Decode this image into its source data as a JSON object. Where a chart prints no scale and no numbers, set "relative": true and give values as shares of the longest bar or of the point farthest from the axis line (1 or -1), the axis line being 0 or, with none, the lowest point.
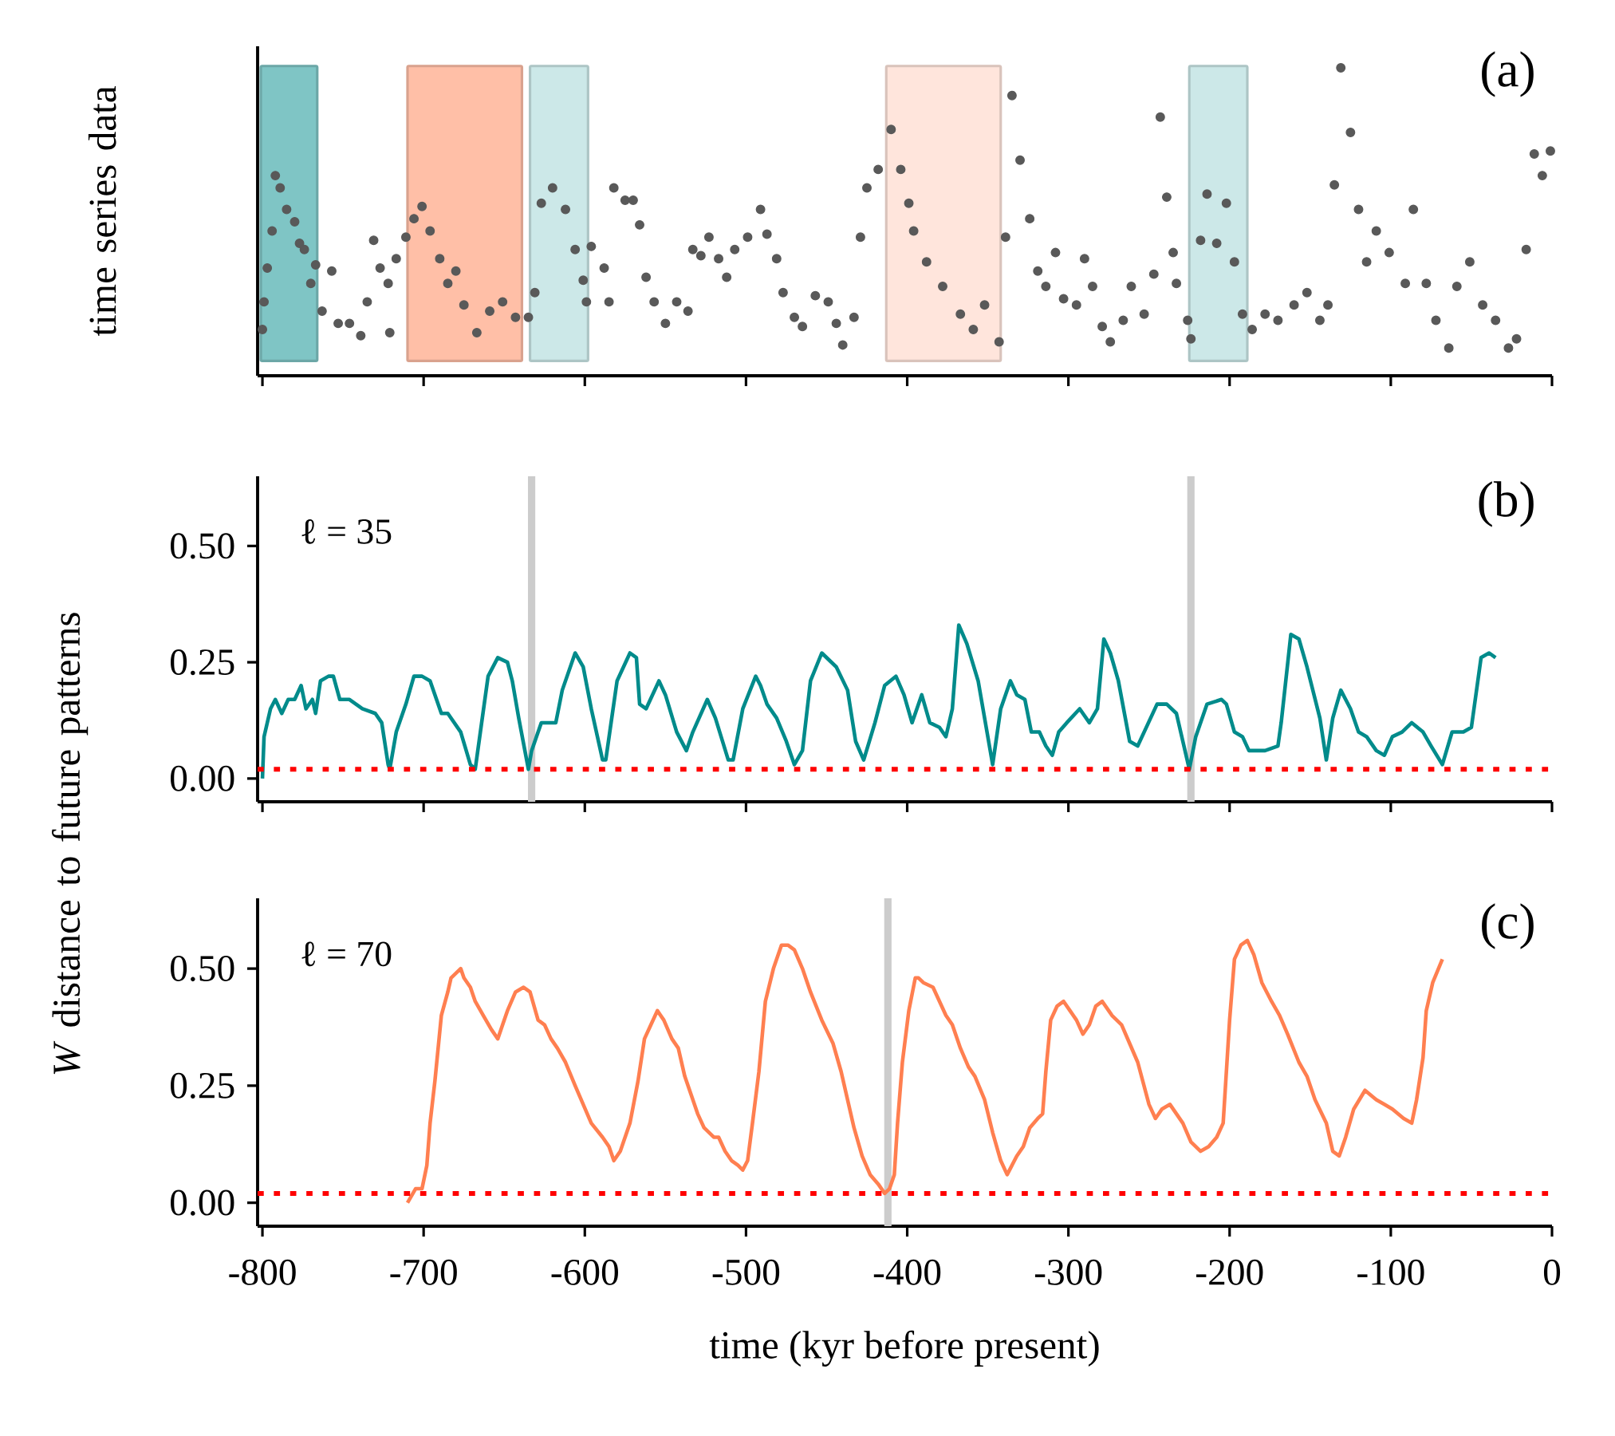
{
  "chart_data": [
    {
      "type": "scatter",
      "ylabel": "time series data",
      "relative": true,
      "color": "#595959",
      "xlim": [
        -803,
        0
      ],
      "xticks": [
        -800,
        -700,
        -600,
        -500,
        -400,
        -300,
        -200,
        -100,
        0
      ],
      "tick_labels": false,
      "x": [
        -800,
        -799,
        -797,
        -794,
        -792,
        -789,
        -785,
        -780,
        -777,
        -774,
        -770,
        -767,
        -763,
        -757,
        -753,
        -746,
        -739,
        -735,
        -731,
        -727,
        -722,
        -721,
        -717,
        -711,
        -706,
        -701,
        -696,
        -690,
        -685,
        -680,
        -675,
        -667,
        -659,
        -651,
        -643,
        -635,
        -631,
        -627,
        -620,
        -612,
        -606,
        -601,
        -599,
        -596,
        -588,
        -585,
        -582,
        -575,
        -570,
        -566,
        -562,
        -557,
        -550,
        -543,
        -536,
        -533,
        -528,
        -523,
        -517,
        -512,
        -507,
        -499,
        -491,
        -487,
        -481,
        -477,
        -470,
        -465,
        -457,
        -449,
        -444,
        -440,
        -433,
        -429,
        -425,
        -418,
        -410,
        -404,
        -399,
        -396,
        -388,
        -378,
        -367,
        -359,
        -352,
        -343,
        -339,
        -335,
        -330,
        -324,
        -319,
        -314,
        -308,
        -303,
        -295,
        -290,
        -285,
        -279,
        -274,
        -266,
        -261,
        -253,
        -247,
        -243,
        -239,
        -235,
        -233,
        -226,
        -224,
        -218,
        -214,
        -208,
        -202,
        -197,
        -192,
        -186,
        -178,
        -170,
        -160,
        -152,
        -144,
        -139,
        -135,
        -131,
        -125,
        -120,
        -115,
        -109,
        -101,
        -91,
        -86,
        -78,
        -72,
        -64,
        -59,
        -51,
        -43,
        -35,
        -27,
        -22,
        -16,
        -11,
        -6,
        -1
      ],
      "values": [
        0.15,
        0.24,
        0.35,
        0.47,
        0.65,
        0.61,
        0.54,
        0.5,
        0.43,
        0.41,
        0.3,
        0.36,
        0.21,
        0.34,
        0.17,
        0.17,
        0.13,
        0.24,
        0.44,
        0.35,
        0.3,
        0.14,
        0.38,
        0.45,
        0.51,
        0.55,
        0.47,
        0.38,
        0.3,
        0.34,
        0.23,
        0.14,
        0.21,
        0.24,
        0.19,
        0.19,
        0.27,
        0.56,
        0.61,
        0.54,
        0.41,
        0.31,
        0.24,
        0.42,
        0.35,
        0.24,
        0.61,
        0.57,
        0.57,
        0.49,
        0.32,
        0.24,
        0.17,
        0.24,
        0.21,
        0.41,
        0.39,
        0.45,
        0.38,
        0.32,
        0.41,
        0.45,
        0.54,
        0.46,
        0.38,
        0.27,
        0.19,
        0.16,
        0.26,
        0.24,
        0.17,
        0.1,
        0.19,
        0.45,
        0.61,
        0.67,
        0.8,
        0.67,
        0.56,
        0.47,
        0.37,
        0.29,
        0.2,
        0.15,
        0.23,
        0.11,
        0.45,
        0.91,
        0.7,
        0.51,
        0.34,
        0.29,
        0.4,
        0.25,
        0.23,
        0.38,
        0.29,
        0.16,
        0.11,
        0.18,
        0.29,
        0.2,
        0.33,
        0.84,
        0.58,
        0.4,
        0.3,
        0.18,
        0.12,
        0.44,
        0.59,
        0.43,
        0.56,
        0.37,
        0.2,
        0.15,
        0.2,
        0.18,
        0.23,
        0.27,
        0.18,
        0.23,
        0.62,
        1.0,
        0.79,
        0.54,
        0.37,
        0.47,
        0.4,
        0.3,
        0.54,
        0.3,
        0.18,
        0.09,
        0.29,
        0.37,
        0.23,
        0.18,
        0.09,
        0.12,
        0.41,
        0.72,
        0.65,
        0.73
      ],
      "bands": [
        {
          "axis": "x",
          "from": -801,
          "to": -766,
          "color": "#7fc5c5"
        },
        {
          "axis": "x",
          "from": -710,
          "to": -639,
          "color": "#ffbfa7"
        },
        {
          "axis": "x",
          "from": -634,
          "to": -598,
          "color": "#cce8e8"
        },
        {
          "axis": "x",
          "from": -413,
          "to": -342,
          "color": "#ffe5dc"
        },
        {
          "axis": "x",
          "from": -225,
          "to": -189,
          "color": "#cce8e8"
        }
      ],
      "annotations": [
        "(a)"
      ]
    },
    {
      "type": "line",
      "ylabel": "*W* distance to future patterns",
      "color": "#008b8b",
      "xlim": [
        -803,
        0
      ],
      "ylim": [
        -0.05,
        0.65
      ],
      "xticks": [
        -800,
        -700,
        -600,
        -500,
        -400,
        -300,
        -200,
        -100,
        0
      ],
      "yticks": [
        {
          "value": 0,
          "label": "0.00"
        },
        {
          "value": 0.25,
          "label": "0.25"
        },
        {
          "value": 0.5,
          "label": "0.50"
        }
      ],
      "tick_labels": "y",
      "x": [
        -800,
        -799,
        -795,
        -792,
        -788,
        -784,
        -780,
        -776,
        -773,
        -769,
        -767,
        -764,
        -759,
        -756,
        -752,
        -746,
        -738,
        -730,
        -726,
        -722,
        -721,
        -717,
        -711,
        -706,
        -701,
        -696,
        -689,
        -685,
        -677,
        -671,
        -668,
        -664,
        -660,
        -654,
        -648,
        -645,
        -641,
        -635,
        -633,
        -627,
        -622,
        -618,
        -614,
        -606,
        -601,
        -596,
        -589,
        -587,
        -580,
        -572,
        -568,
        -566,
        -562,
        -554,
        -550,
        -543,
        -537,
        -533,
        -524,
        -519,
        -511,
        -508,
        -502,
        -494,
        -491,
        -487,
        -481,
        -475,
        -470,
        -465,
        -460,
        -453,
        -444,
        -437,
        -432,
        -427,
        -420,
        -414,
        -407,
        -402,
        -397,
        -391,
        -386,
        -380,
        -376,
        -372,
        -368,
        -363,
        -356,
        -347,
        -342,
        -336,
        -332,
        -327,
        -323,
        -318,
        -314,
        -310,
        -306,
        -301,
        -293,
        -287,
        -282,
        -278,
        -274,
        -269,
        -262,
        -257,
        -245,
        -239,
        -233,
        -225,
        -221,
        -214,
        -205,
        -202,
        -197,
        -192,
        -188,
        -184,
        -178,
        -170,
        -168,
        -162,
        -157,
        -152,
        -144,
        -140,
        -136,
        -131,
        -125,
        -120,
        -115,
        -109,
        -104,
        -99,
        -93,
        -87,
        -80,
        -75,
        -68,
        -62,
        -55,
        -50,
        -44,
        -39,
        -35
      ],
      "values": [
        0.0,
        0.09,
        0.15,
        0.17,
        0.14,
        0.17,
        0.17,
        0.2,
        0.15,
        0.17,
        0.14,
        0.21,
        0.22,
        0.22,
        0.17,
        0.17,
        0.15,
        0.14,
        0.12,
        0.03,
        0.02,
        0.1,
        0.16,
        0.22,
        0.22,
        0.21,
        0.14,
        0.14,
        0.1,
        0.03,
        0.02,
        0.12,
        0.22,
        0.26,
        0.25,
        0.21,
        0.13,
        0.02,
        0.06,
        0.12,
        0.12,
        0.12,
        0.19,
        0.27,
        0.24,
        0.15,
        0.04,
        0.04,
        0.21,
        0.27,
        0.26,
        0.16,
        0.15,
        0.21,
        0.18,
        0.1,
        0.06,
        0.1,
        0.17,
        0.13,
        0.04,
        0.04,
        0.15,
        0.22,
        0.2,
        0.16,
        0.13,
        0.08,
        0.03,
        0.06,
        0.21,
        0.27,
        0.24,
        0.19,
        0.08,
        0.04,
        0.12,
        0.2,
        0.22,
        0.18,
        0.12,
        0.18,
        0.12,
        0.11,
        0.09,
        0.15,
        0.33,
        0.29,
        0.21,
        0.03,
        0.15,
        0.21,
        0.18,
        0.17,
        0.1,
        0.1,
        0.07,
        0.05,
        0.1,
        0.12,
        0.15,
        0.12,
        0.15,
        0.3,
        0.27,
        0.21,
        0.08,
        0.07,
        0.16,
        0.16,
        0.14,
        0.02,
        0.09,
        0.16,
        0.17,
        0.16,
        0.1,
        0.09,
        0.06,
        0.06,
        0.06,
        0.07,
        0.12,
        0.31,
        0.3,
        0.24,
        0.13,
        0.04,
        0.13,
        0.19,
        0.15,
        0.1,
        0.09,
        0.06,
        0.05,
        0.09,
        0.1,
        0.12,
        0.1,
        0.07,
        0.03,
        0.1,
        0.1,
        0.11,
        0.26,
        0.27,
        0.26
      ],
      "ref_lines": [
        {
          "axis": "y",
          "value": 0.02,
          "color": "#ff0000",
          "line_style": "dotted"
        },
        {
          "axis": "x",
          "value": -633,
          "color": "#cccccc",
          "line_style": "solid"
        },
        {
          "axis": "x",
          "value": -224,
          "color": "#cccccc",
          "line_style": "solid"
        }
      ],
      "annotations": [
        "(b)",
        "ℓ = 35"
      ]
    },
    {
      "type": "line",
      "xlabel": "time (kyr before present)",
      "color": "#ff7f50",
      "xlim": [
        -803,
        0
      ],
      "ylim": [
        -0.05,
        0.65
      ],
      "xticks": [
        -800,
        -700,
        -600,
        -500,
        -400,
        -300,
        -200,
        -100,
        0
      ],
      "yticks": [
        {
          "value": 0,
          "label": "0.00"
        },
        {
          "value": 0.25,
          "label": "0.25"
        },
        {
          "value": 0.5,
          "label": "0.50"
        }
      ],
      "x": [
        -710,
        -705,
        -701,
        -698,
        -696,
        -693,
        -689,
        -685,
        -683,
        -677,
        -675,
        -671,
        -668,
        -663,
        -658,
        -654,
        -651,
        -648,
        -643,
        -638,
        -634,
        -629,
        -625,
        -621,
        -617,
        -612,
        -606,
        -601,
        -596,
        -589,
        -585,
        -582,
        -578,
        -572,
        -567,
        -563,
        -559,
        -555,
        -551,
        -546,
        -542,
        -538,
        -534,
        -530,
        -526,
        -520,
        -517,
        -513,
        -509,
        -505,
        -502,
        -499,
        -496,
        -492,
        -488,
        -483,
        -478,
        -474,
        -470,
        -465,
        -460,
        -453,
        -446,
        -441,
        -437,
        -433,
        -428,
        -423,
        -418,
        -414,
        -411,
        -408,
        -406,
        -403,
        -399,
        -395,
        -393,
        -390,
        -384,
        -380,
        -376,
        -372,
        -367,
        -362,
        -358,
        -352,
        -347,
        -342,
        -338,
        -332,
        -328,
        -324,
        -319,
        -316,
        -314,
        -311,
        -307,
        -303,
        -299,
        -295,
        -291,
        -287,
        -283,
        -279,
        -275,
        -273,
        -267,
        -262,
        -257,
        -250,
        -246,
        -242,
        -237,
        -233,
        -229,
        -224,
        -218,
        -213,
        -208,
        -204,
        -200,
        -197,
        -193,
        -189,
        -185,
        -180,
        -174,
        -169,
        -164,
        -157,
        -152,
        -147,
        -140,
        -136,
        -132,
        -128,
        -123,
        -116,
        -109,
        -104,
        -99,
        -92,
        -87,
        -84,
        -80,
        -78,
        -74,
        -68
      ],
      "values": [
        0.0,
        0.03,
        0.03,
        0.08,
        0.17,
        0.26,
        0.4,
        0.45,
        0.48,
        0.5,
        0.48,
        0.46,
        0.43,
        0.4,
        0.37,
        0.35,
        0.38,
        0.41,
        0.45,
        0.46,
        0.45,
        0.39,
        0.38,
        0.35,
        0.33,
        0.3,
        0.25,
        0.21,
        0.17,
        0.14,
        0.12,
        0.09,
        0.11,
        0.17,
        0.26,
        0.35,
        0.38,
        0.41,
        0.39,
        0.35,
        0.33,
        0.27,
        0.23,
        0.19,
        0.16,
        0.14,
        0.14,
        0.11,
        0.09,
        0.08,
        0.07,
        0.09,
        0.17,
        0.28,
        0.43,
        0.5,
        0.55,
        0.55,
        0.54,
        0.5,
        0.45,
        0.39,
        0.34,
        0.28,
        0.22,
        0.16,
        0.1,
        0.06,
        0.04,
        0.02,
        0.03,
        0.06,
        0.17,
        0.3,
        0.41,
        0.48,
        0.48,
        0.47,
        0.46,
        0.43,
        0.4,
        0.38,
        0.33,
        0.29,
        0.27,
        0.22,
        0.15,
        0.09,
        0.06,
        0.1,
        0.12,
        0.16,
        0.18,
        0.19,
        0.28,
        0.39,
        0.42,
        0.43,
        0.41,
        0.39,
        0.36,
        0.38,
        0.42,
        0.43,
        0.41,
        0.4,
        0.38,
        0.34,
        0.3,
        0.21,
        0.18,
        0.2,
        0.21,
        0.19,
        0.17,
        0.13,
        0.11,
        0.12,
        0.14,
        0.17,
        0.39,
        0.52,
        0.55,
        0.56,
        0.53,
        0.47,
        0.43,
        0.4,
        0.36,
        0.3,
        0.27,
        0.22,
        0.17,
        0.11,
        0.1,
        0.14,
        0.2,
        0.24,
        0.22,
        0.21,
        0.2,
        0.18,
        0.17,
        0.22,
        0.31,
        0.41,
        0.47,
        0.52
      ],
      "ref_lines": [
        {
          "axis": "y",
          "value": 0.02,
          "color": "#ff0000",
          "line_style": "dotted"
        },
        {
          "axis": "x",
          "value": -412,
          "color": "#cccccc",
          "line_style": "solid"
        }
      ],
      "annotations": [
        "(c)",
        "ℓ = 70"
      ]
    }
  ]
}
